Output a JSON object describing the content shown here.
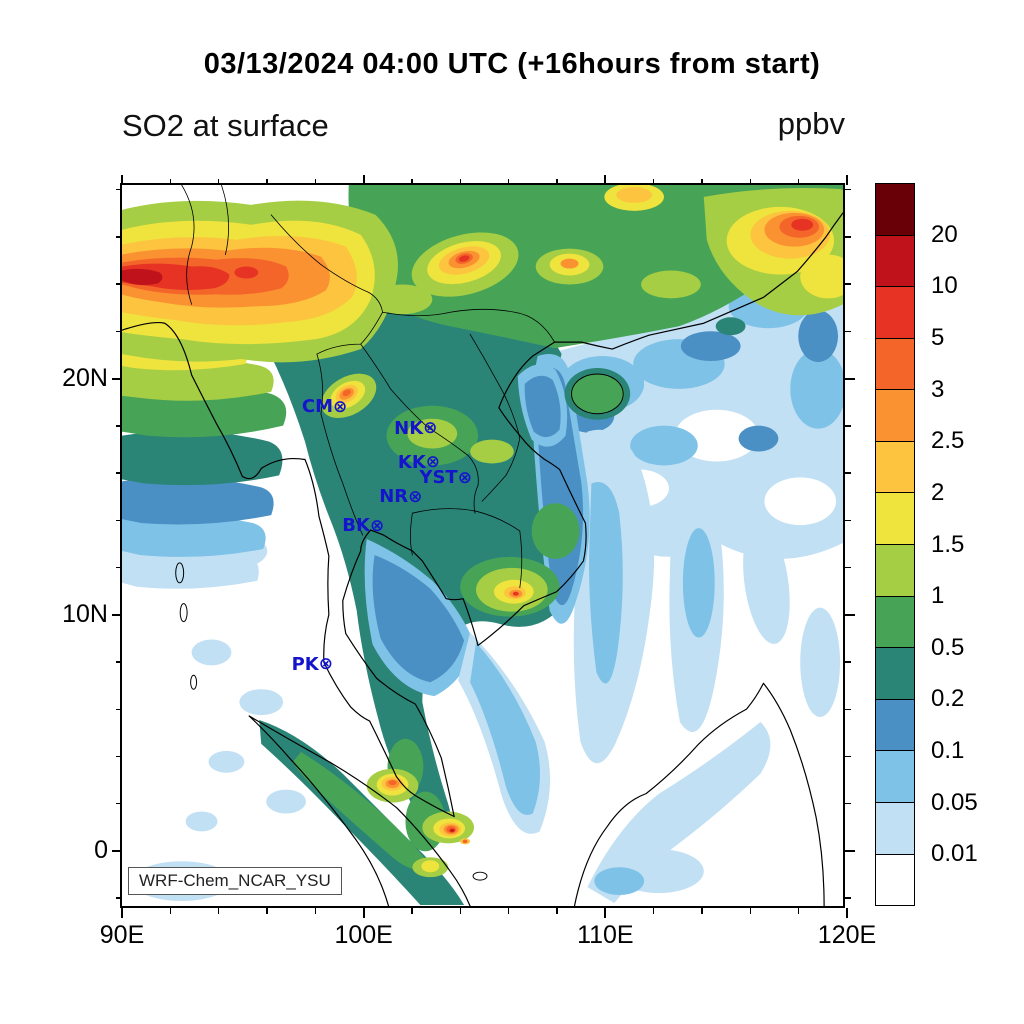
{
  "title": "03/13/2024 04:00 UTC (+16hours from start)",
  "subtitle": "SO2 at surface",
  "units": "ppbv",
  "model_label": "WRF-Chem_NCAR_YSU",
  "colors": {
    "station": "#1414cc",
    "axis": "#000000"
  },
  "chart_data": {
    "type": "heatmap",
    "variable": "SO2 at surface",
    "units": "ppbv",
    "valid_time": "03/13/2024 04:00 UTC",
    "forecast_offset": "+16hours from start",
    "extent": {
      "lon_min": 90,
      "lon_max": 120,
      "lat_min": -2.5,
      "lat_max": 28.2
    },
    "x_ticks": [
      {
        "label": "90E",
        "lon": 90
      },
      {
        "label": "100E",
        "lon": 100
      },
      {
        "label": "110E",
        "lon": 110
      },
      {
        "label": "120E",
        "lon": 120
      }
    ],
    "y_ticks": [
      {
        "label": "0",
        "lat": 0
      },
      {
        "label": "10N",
        "lat": 10
      },
      {
        "label": "20N",
        "lat": 20
      }
    ],
    "minor_tick_interval_deg": 2,
    "colorbar": {
      "labels_top_to_bottom": [
        "20",
        "10",
        "5",
        "3",
        "2.5",
        "2",
        "1.5",
        "1",
        "0.5",
        "0.2",
        "0.1",
        "0.05",
        "0.01"
      ],
      "colors_top_to_bottom": [
        "#690008",
        "#bf121b",
        "#e63323",
        "#f4652a",
        "#fa9232",
        "#fdc53f",
        "#efe33d",
        "#a5ce44",
        "#47a456",
        "#2b8577",
        "#4a90c4",
        "#7fc2e7",
        "#c1e0f4",
        "#ffffff"
      ]
    },
    "station_marker": "⊗",
    "stations": [
      {
        "id": "CM",
        "lon": 98.99,
        "lat": 18.79
      },
      {
        "id": "NK",
        "lon": 102.72,
        "lat": 17.87
      },
      {
        "id": "KK",
        "lon": 102.83,
        "lat": 16.43
      },
      {
        "id": "YST",
        "lon": 104.15,
        "lat": 15.79
      },
      {
        "id": "NR",
        "lon": 102.1,
        "lat": 14.97
      },
      {
        "id": "BK",
        "lon": 100.52,
        "lat": 13.75
      },
      {
        "id": "PK",
        "lon": 98.4,
        "lat": 7.88
      }
    ],
    "field_description": "High SO2 (3 to >10 ppbv) over northeast India / Myanmar and along the southern China coast; moderate values (0.2-1 ppbv, teal/green) over Indochina and the Malay peninsula; low values (<0.1 ppbv, light blue/white) over the open South China Sea; local hotspots near Chiang Mai, southern Vietnam, the Singapore/Riau area and coastal Sumatra."
  }
}
